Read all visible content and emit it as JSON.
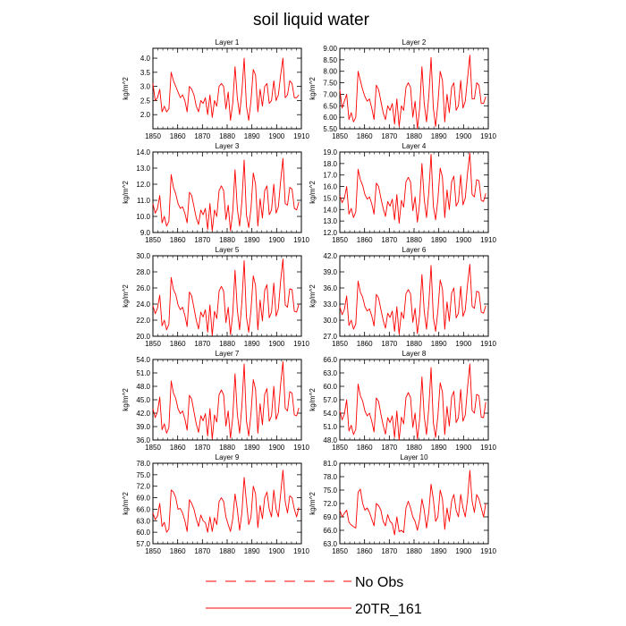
{
  "title": "soil liquid water",
  "colors": {
    "series": "#ff0000",
    "axis": "#000000"
  },
  "legend": [
    {
      "label": "No Obs",
      "style": "dashed"
    },
    {
      "label": "20TR_161",
      "style": "solid"
    }
  ],
  "chart_data": [
    {
      "type": "line",
      "title": "Layer 1",
      "ylabel": "kg/m^2",
      "xlim": [
        1850,
        1910
      ],
      "ylim": [
        1.5,
        4.35
      ],
      "xticks": [
        "1850",
        "1860",
        "1870",
        "1880",
        "1890",
        "1900",
        "1910"
      ],
      "yticks": [
        "2.0",
        "2.5",
        "3.0",
        "3.5",
        "4.0"
      ],
      "series": [
        {
          "values": [
            3.1,
            2.5,
            2.6,
            2.9,
            2.1,
            2.3,
            2.1,
            2.2,
            3.5,
            3.2,
            3.0,
            2.8,
            2.6,
            2.7,
            2.5,
            2.1,
            3.0,
            2.9,
            2.7,
            2.3,
            2.1,
            2.5,
            2.4,
            2.6,
            2.0,
            2.7,
            1.9,
            2.5,
            2.3,
            3.0,
            3.1,
            3.0,
            2.2,
            2.8,
            1.8,
            2.4,
            3.7,
            2.6,
            2.0,
            2.8,
            4.0,
            2.3,
            1.8,
            2.5,
            3.6,
            3.4,
            2.1,
            2.9,
            2.3,
            3.0,
            3.1,
            2.4,
            2.5,
            3.2,
            2.5,
            2.7,
            3.4,
            4.0,
            2.6,
            2.7,
            3.2,
            3.1,
            2.6,
            2.6,
            2.7
          ]
        }
      ]
    },
    {
      "type": "line",
      "title": "Layer 2",
      "ylabel": "kg/m^2",
      "xlim": [
        1850,
        1910
      ],
      "ylim": [
        5.5,
        9.0
      ],
      "xticks": [
        "1850",
        "1860",
        "1870",
        "1880",
        "1890",
        "1900",
        "1910"
      ],
      "yticks": [
        "5.50",
        "6.00",
        "6.50",
        "7.00",
        "7.50",
        "8.00",
        "8.50",
        "9.00"
      ],
      "series": [
        {
          "values": [
            7.2,
            6.4,
            6.7,
            7.0,
            5.9,
            6.2,
            5.8,
            6.0,
            8.0,
            7.6,
            7.2,
            6.9,
            6.7,
            6.8,
            6.4,
            5.9,
            7.4,
            7.2,
            6.7,
            6.2,
            5.9,
            6.5,
            6.3,
            6.6,
            5.7,
            6.8,
            5.6,
            6.5,
            6.3,
            7.3,
            7.5,
            7.3,
            6.0,
            6.7,
            5.5,
            6.4,
            8.2,
            6.6,
            5.8,
            6.9,
            8.6,
            6.4,
            5.6,
            6.6,
            8.0,
            7.6,
            5.8,
            7.0,
            6.2,
            7.3,
            7.5,
            6.3,
            6.5,
            7.6,
            6.4,
            6.7,
            7.7,
            8.7,
            6.8,
            6.8,
            7.5,
            7.4,
            6.6,
            6.6,
            6.9
          ]
        }
      ]
    },
    {
      "type": "line",
      "title": "Layer 3",
      "ylabel": "kg/m^2",
      "xlim": [
        1850,
        1910
      ],
      "ylim": [
        9.0,
        14.0
      ],
      "xticks": [
        "1850",
        "1860",
        "1870",
        "1880",
        "1890",
        "1900",
        "1910"
      ],
      "yticks": [
        "9.0",
        "10.0",
        "11.0",
        "12.0",
        "13.0",
        "14.0"
      ],
      "series": [
        {
          "values": [
            10.8,
            10.2,
            10.5,
            11.3,
            9.6,
            10.0,
            9.4,
            9.7,
            12.6,
            11.8,
            11.4,
            10.8,
            10.5,
            10.6,
            10.2,
            9.6,
            11.5,
            11.3,
            10.6,
            9.9,
            9.5,
            10.4,
            10.1,
            10.5,
            9.2,
            10.8,
            9.1,
            10.4,
            10.0,
            11.6,
            11.9,
            11.6,
            9.8,
            10.7,
            9.1,
            10.3,
            12.9,
            10.5,
            9.4,
            10.9,
            13.5,
            10.1,
            9.3,
            10.5,
            12.7,
            12.0,
            9.4,
            11.1,
            9.9,
            11.6,
            11.9,
            10.1,
            10.4,
            12.0,
            10.2,
            10.6,
            12.2,
            13.6,
            10.8,
            10.7,
            11.8,
            11.7,
            10.5,
            10.4,
            10.9
          ]
        }
      ]
    },
    {
      "type": "line",
      "title": "Layer 4",
      "ylabel": "kg/m^2",
      "xlim": [
        1850,
        1910
      ],
      "ylim": [
        12.0,
        19.0
      ],
      "xticks": [
        "1850",
        "1860",
        "1870",
        "1880",
        "1890",
        "1900",
        "1910"
      ],
      "yticks": [
        "12.0",
        "13.0",
        "14.0",
        "15.0",
        "16.0",
        "17.0",
        "18.0",
        "19.0"
      ],
      "series": [
        {
          "values": [
            15.2,
            14.6,
            15.0,
            16.0,
            13.6,
            14.1,
            13.3,
            13.8,
            17.5,
            16.6,
            16.1,
            15.3,
            14.9,
            15.1,
            14.5,
            13.6,
            16.3,
            16.0,
            15.0,
            14.1,
            13.4,
            14.7,
            14.3,
            14.9,
            13.1,
            15.3,
            12.8,
            14.8,
            14.2,
            16.4,
            16.8,
            16.4,
            13.9,
            15.1,
            12.9,
            14.6,
            18.0,
            14.9,
            13.3,
            15.5,
            18.8,
            14.3,
            13.1,
            14.9,
            17.6,
            16.8,
            13.3,
            15.7,
            14.0,
            16.4,
            16.9,
            14.3,
            14.7,
            17.0,
            14.4,
            15.0,
            17.2,
            18.9,
            15.3,
            15.1,
            16.6,
            16.5,
            14.8,
            14.7,
            15.4
          ]
        }
      ]
    },
    {
      "type": "line",
      "title": "Layer 5",
      "ylabel": "kg/m^2",
      "xlim": [
        1850,
        1910
      ],
      "ylim": [
        20.0,
        30.0
      ],
      "xticks": [
        "1850",
        "1860",
        "1870",
        "1880",
        "1890",
        "1900",
        "1910"
      ],
      "yticks": [
        "20.0",
        "22.0",
        "24.0",
        "26.0",
        "28.0",
        "30.0"
      ],
      "series": [
        {
          "values": [
            23.8,
            22.8,
            23.5,
            25.1,
            21.3,
            22.0,
            20.8,
            21.5,
            27.3,
            25.8,
            25.2,
            23.9,
            23.3,
            23.6,
            22.6,
            21.2,
            25.5,
            25.0,
            23.5,
            22.0,
            20.9,
            23.0,
            22.4,
            23.3,
            20.5,
            23.9,
            20.1,
            23.1,
            22.2,
            25.6,
            26.2,
            25.6,
            21.7,
            23.6,
            20.2,
            22.8,
            28.2,
            23.3,
            20.8,
            24.2,
            29.4,
            22.4,
            20.5,
            23.3,
            27.5,
            26.3,
            20.8,
            24.5,
            21.9,
            25.7,
            26.4,
            22.3,
            23.0,
            26.6,
            22.5,
            23.4,
            26.9,
            29.6,
            23.9,
            23.6,
            25.9,
            25.8,
            23.1,
            23.0,
            24.0
          ]
        }
      ]
    },
    {
      "type": "line",
      "title": "Layer 6",
      "ylabel": "kg/m^2",
      "xlim": [
        1850,
        1910
      ],
      "ylim": [
        27.0,
        42.0
      ],
      "xticks": [
        "1850",
        "1860",
        "1870",
        "1880",
        "1890",
        "1900",
        "1910"
      ],
      "yticks": [
        "27.0",
        "30.0",
        "33.0",
        "36.0",
        "39.0",
        "42.0"
      ],
      "series": [
        {
          "values": [
            32.5,
            31.0,
            32.0,
            34.5,
            29.0,
            30.0,
            28.3,
            29.3,
            37.3,
            35.2,
            34.3,
            32.5,
            31.7,
            32.1,
            30.8,
            28.9,
            34.8,
            34.1,
            32.0,
            30.0,
            28.5,
            31.3,
            30.5,
            31.7,
            27.9,
            32.5,
            27.4,
            31.5,
            30.3,
            34.9,
            35.7,
            34.9,
            29.6,
            32.2,
            27.5,
            31.1,
            38.5,
            31.7,
            28.3,
            33.0,
            40.2,
            30.5,
            27.9,
            31.8,
            37.5,
            35.8,
            28.3,
            33.4,
            29.8,
            35.0,
            36.0,
            30.4,
            31.3,
            36.3,
            30.7,
            31.9,
            36.7,
            40.4,
            32.6,
            32.2,
            35.4,
            35.2,
            31.5,
            31.3,
            32.7
          ]
        }
      ]
    },
    {
      "type": "line",
      "title": "Layer 7",
      "ylabel": "kg/m^2",
      "xlim": [
        1850,
        1910
      ],
      "ylim": [
        36.0,
        54.0
      ],
      "xticks": [
        "1850",
        "1860",
        "1870",
        "1880",
        "1890",
        "1900",
        "1910"
      ],
      "yticks": [
        "36.0",
        "39.0",
        "42.0",
        "45.0",
        "48.0",
        "51.0",
        "54.0"
      ],
      "series": [
        {
          "values": [
            43.0,
            41.0,
            42.3,
            45.6,
            38.3,
            39.6,
            37.5,
            38.8,
            49.2,
            46.5,
            45.3,
            43.0,
            41.9,
            42.5,
            40.7,
            38.2,
            46.0,
            45.1,
            42.3,
            39.6,
            37.7,
            41.4,
            40.3,
            41.9,
            36.9,
            43.0,
            36.2,
            41.6,
            40.0,
            46.1,
            47.2,
            46.1,
            39.1,
            42.5,
            36.4,
            41.1,
            50.8,
            41.9,
            37.5,
            43.6,
            53.0,
            40.3,
            36.9,
            42.0,
            49.5,
            47.3,
            37.5,
            44.1,
            39.4,
            46.2,
            47.5,
            40.2,
            41.4,
            48.0,
            40.6,
            42.1,
            48.5,
            53.5,
            43.1,
            42.5,
            46.8,
            46.5,
            41.6,
            41.4,
            43.2
          ]
        }
      ]
    },
    {
      "type": "line",
      "title": "Layer 8",
      "ylabel": "kg/m^2",
      "xlim": [
        1850,
        1910
      ],
      "ylim": [
        48.0,
        66.0
      ],
      "xticks": [
        "1850",
        "1860",
        "1870",
        "1880",
        "1890",
        "1900",
        "1910"
      ],
      "yticks": [
        "48.0",
        "51.0",
        "54.0",
        "57.0",
        "60.0",
        "63.0",
        "66.0"
      ],
      "series": [
        {
          "values": [
            54.5,
            52.5,
            53.8,
            57.0,
            50.0,
            51.3,
            49.2,
            50.4,
            60.5,
            57.9,
            56.7,
            54.5,
            53.4,
            54.0,
            52.2,
            49.8,
            57.4,
            56.6,
            53.8,
            51.3,
            49.3,
            53.0,
            51.9,
            53.4,
            48.6,
            54.5,
            48.0,
            53.1,
            51.6,
            57.5,
            58.6,
            57.5,
            50.8,
            54.0,
            48.2,
            52.7,
            62.1,
            53.4,
            49.2,
            55.1,
            64.2,
            51.9,
            48.6,
            53.5,
            60.8,
            58.7,
            49.2,
            55.5,
            51.1,
            57.6,
            58.9,
            51.9,
            53.0,
            59.3,
            52.2,
            53.6,
            59.8,
            65.0,
            54.6,
            54.0,
            58.2,
            57.9,
            53.1,
            53.0,
            56.5
          ]
        }
      ]
    },
    {
      "type": "line",
      "title": "Layer 9",
      "ylabel": "kg/m^2",
      "xlim": [
        1850,
        1910
      ],
      "ylim": [
        57.0,
        78.0
      ],
      "xticks": [
        "1850",
        "1860",
        "1870",
        "1880",
        "1890",
        "1900",
        "1910"
      ],
      "yticks": [
        "57.0",
        "60.0",
        "63.0",
        "66.0",
        "69.0",
        "72.0",
        "75.0",
        "78.0"
      ],
      "series": [
        {
          "values": [
            65.0,
            63.3,
            64.2,
            67.5,
            61.5,
            62.6,
            60.0,
            60.8,
            71.0,
            70.5,
            69.0,
            66.0,
            66.2,
            65.0,
            63.0,
            60.2,
            68.5,
            67.5,
            66.0,
            63.5,
            61.5,
            64.5,
            63.0,
            62.5,
            60.0,
            64.0,
            60.2,
            63.8,
            62.0,
            68.0,
            69.0,
            68.0,
            64.0,
            62.0,
            60.2,
            63.5,
            70.0,
            66.0,
            60.5,
            65.0,
            74.3,
            68.0,
            62.0,
            64.0,
            72.0,
            70.0,
            61.2,
            67.0,
            63.5,
            69.0,
            70.5,
            66.0,
            64.0,
            71.0,
            66.0,
            64.0,
            70.0,
            76.2,
            68.0,
            65.0,
            69.5,
            69.0,
            66.0,
            64.0,
            66.5
          ]
        }
      ]
    },
    {
      "type": "line",
      "title": "Layer 10",
      "ylabel": "kg/m^2",
      "xlim": [
        1850,
        1910
      ],
      "ylim": [
        63.0,
        81.0
      ],
      "xticks": [
        "1850",
        "1860",
        "1870",
        "1880",
        "1890",
        "1900",
        "1910"
      ],
      "yticks": [
        "63.0",
        "66.0",
        "69.0",
        "72.0",
        "75.0",
        "78.0",
        "81.0"
      ],
      "series": [
        {
          "values": [
            70.5,
            69.0,
            69.8,
            70.5,
            67.8,
            67.2,
            66.8,
            66.5,
            74.5,
            75.2,
            72.0,
            70.5,
            71.0,
            70.0,
            68.5,
            67.0,
            72.0,
            71.5,
            70.5,
            68.0,
            67.0,
            69.5,
            68.0,
            67.5,
            65.0,
            69.0,
            65.7,
            66.0,
            65.5,
            71.0,
            72.5,
            71.0,
            69.0,
            68.0,
            66.0,
            68.5,
            73.0,
            70.5,
            66.5,
            70.0,
            76.3,
            73.0,
            68.0,
            69.0,
            75.0,
            73.0,
            66.2,
            71.0,
            68.0,
            72.5,
            74.0,
            70.5,
            69.0,
            74.0,
            71.0,
            69.0,
            73.0,
            79.4,
            72.5,
            70.0,
            74.0,
            73.0,
            71.0,
            69.0,
            72.0
          ]
        }
      ]
    }
  ]
}
